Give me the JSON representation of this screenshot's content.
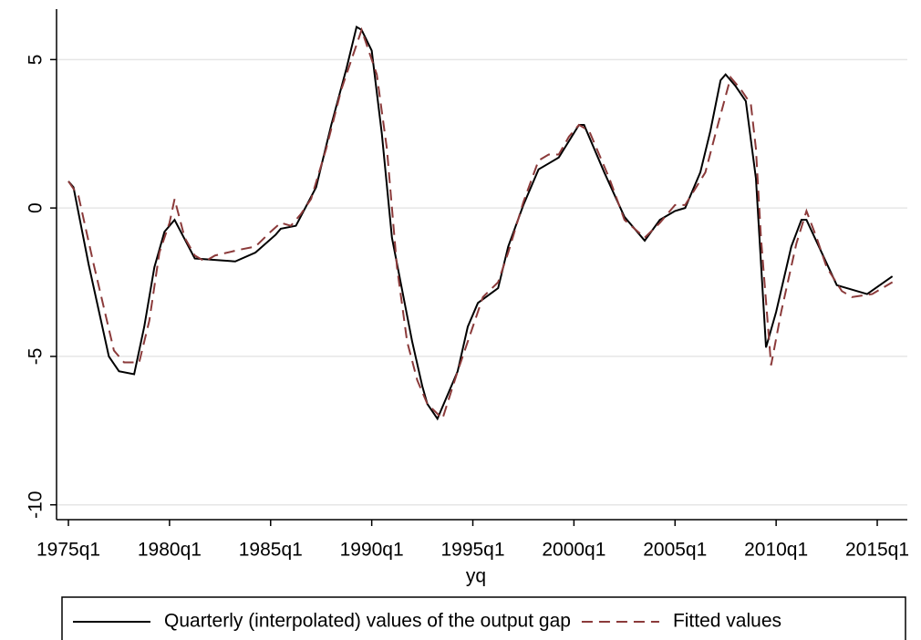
{
  "chart_data": {
    "type": "line",
    "xlabel": "yq",
    "xlim": [
      57.65,
      225.95
    ],
    "ylim": [
      -10.5,
      6.7
    ],
    "xticks": [
      {
        "value": 60,
        "label": "1975q1"
      },
      {
        "value": 80,
        "label": "1980q1"
      },
      {
        "value": 100,
        "label": "1985q1"
      },
      {
        "value": 120,
        "label": "1990q1"
      },
      {
        "value": 140,
        "label": "1995q1"
      },
      {
        "value": 160,
        "label": "2000q1"
      },
      {
        "value": 180,
        "label": "2005q1"
      },
      {
        "value": 200,
        "label": "2010q1"
      },
      {
        "value": 220,
        "label": "2015q1"
      }
    ],
    "yticks": [
      -10,
      -5,
      0,
      5
    ],
    "grid": true,
    "legend": "bottom",
    "series": [
      {
        "name": "Quarterly (interpolated) values of the output gap",
        "color": "#000000",
        "dash": "solid",
        "x": [
          60,
          61,
          64,
          68,
          70,
          73,
          75,
          77,
          79,
          81,
          85,
          93,
          97,
          101,
          102,
          105,
          109,
          112,
          115,
          117,
          118,
          120,
          122,
          124,
          128,
          130,
          131,
          133,
          137,
          139,
          141,
          145,
          147,
          150,
          153,
          155,
          157,
          161,
          162,
          166,
          170,
          174,
          177,
          180,
          182,
          185,
          187,
          189,
          190,
          192,
          194,
          196,
          198,
          200,
          203,
          205,
          206,
          209,
          212,
          218,
          223
        ],
        "values": [
          0.9,
          0.7,
          -1.9,
          -5.0,
          -5.5,
          -5.6,
          -4.0,
          -2.0,
          -0.8,
          -0.4,
          -1.7,
          -1.8,
          -1.5,
          -0.9,
          -0.7,
          -0.6,
          0.7,
          2.8,
          4.7,
          6.1,
          6.0,
          5.3,
          2.5,
          -1.0,
          -4.5,
          -6.0,
          -6.6,
          -7.1,
          -5.5,
          -4.0,
          -3.2,
          -2.7,
          -1.3,
          0.1,
          1.3,
          1.5,
          1.7,
          2.8,
          2.8,
          1.2,
          -0.3,
          -1.1,
          -0.4,
          -0.1,
          0.0,
          1.2,
          2.6,
          4.3,
          4.5,
          4.1,
          3.6,
          1.0,
          -4.7,
          -3.5,
          -1.3,
          -0.4,
          -0.4,
          -1.5,
          -2.6,
          -2.9,
          -2.3
        ]
      },
      {
        "name": "Fitted values",
        "color": "#8b3a3a",
        "dash": "dashed",
        "x": [
          60,
          62,
          65,
          69,
          71,
          74,
          76,
          78,
          80,
          81,
          83,
          85,
          87,
          89,
          94,
          97,
          100,
          102,
          104,
          106,
          108,
          111,
          114,
          118,
          121,
          123,
          125,
          127,
          129,
          131,
          134,
          137,
          140,
          142,
          145,
          147,
          150,
          153,
          155,
          157,
          159,
          161,
          163,
          167,
          170,
          174,
          177,
          180,
          182,
          186,
          188,
          191,
          193,
          195,
          196,
          197,
          199,
          201,
          204,
          206,
          208,
          210,
          213,
          215,
          219,
          223
        ],
        "values": [
          0.9,
          0.4,
          -1.9,
          -4.8,
          -5.2,
          -5.2,
          -3.8,
          -1.5,
          -0.5,
          0.3,
          -1.0,
          -1.6,
          -1.8,
          -1.6,
          -1.4,
          -1.3,
          -0.8,
          -0.5,
          -0.6,
          -0.2,
          0.3,
          2.0,
          4.0,
          6.0,
          4.5,
          2.0,
          -2.0,
          -4.5,
          -5.8,
          -6.6,
          -7.1,
          -5.5,
          -4.0,
          -3.0,
          -2.5,
          -1.5,
          0.2,
          1.6,
          1.8,
          1.8,
          2.4,
          2.8,
          2.6,
          1.0,
          -0.4,
          -1.0,
          -0.5,
          0.1,
          0.1,
          1.2,
          2.5,
          4.4,
          4.0,
          3.5,
          2.0,
          -1.0,
          -5.3,
          -3.5,
          -1.2,
          -0.1,
          -1.0,
          -2.0,
          -2.8,
          -3.0,
          -2.9,
          -2.5
        ]
      }
    ]
  }
}
